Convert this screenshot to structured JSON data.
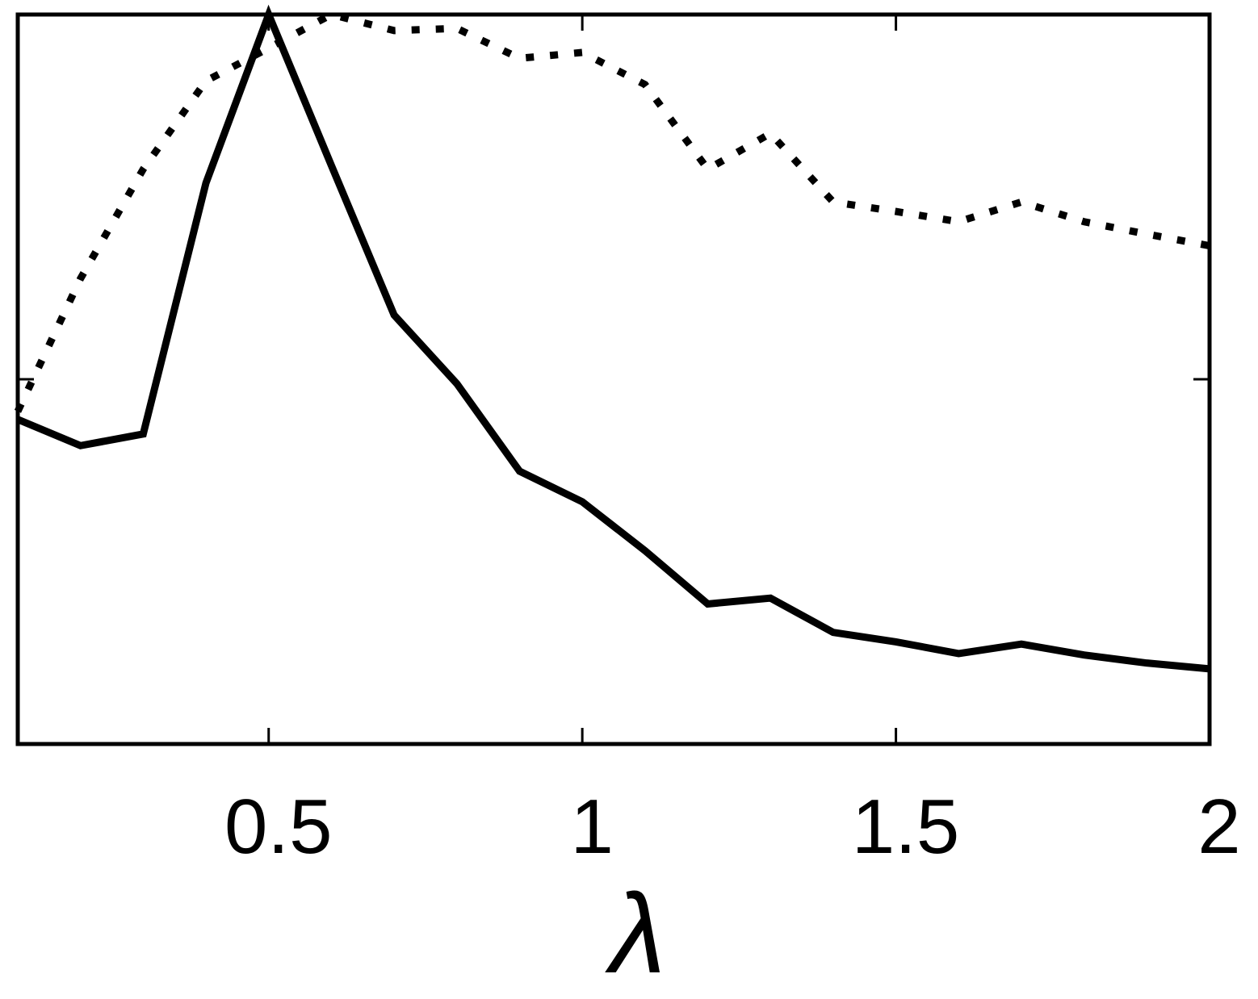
{
  "chart_data": {
    "type": "line",
    "x_label": "λ",
    "x": [
      0.1,
      0.2,
      0.3,
      0.4,
      0.5,
      0.6,
      0.7,
      0.8,
      0.9,
      1.0,
      1.1,
      1.2,
      1.3,
      1.4,
      1.5,
      1.6,
      1.7,
      1.8,
      1.9,
      2.0
    ],
    "series": [
      {
        "color": "#000000",
        "style": "solid",
        "values": [
          0.445,
          0.409,
          0.425,
          0.769,
          1.0,
          0.793,
          0.588,
          0.494,
          0.374,
          0.332,
          0.265,
          0.192,
          0.2,
          0.153,
          0.14,
          0.124,
          0.137,
          0.122,
          0.111,
          0.103
        ]
      },
      {
        "color": "#000000",
        "style": "dotted",
        "values": [
          0.456,
          0.638,
          0.788,
          0.909,
          0.954,
          1.0,
          0.978,
          0.981,
          0.94,
          0.948,
          0.904,
          0.788,
          0.837,
          0.743,
          0.73,
          0.716,
          0.743,
          0.716,
          0.699,
          0.683
        ]
      }
    ],
    "xlim": [
      0.1,
      2
    ],
    "ylim": [
      0,
      1
    ],
    "xticks": [
      0.5,
      1,
      1.5,
      2
    ],
    "yticks": [
      0.5
    ],
    "grid": false
  }
}
